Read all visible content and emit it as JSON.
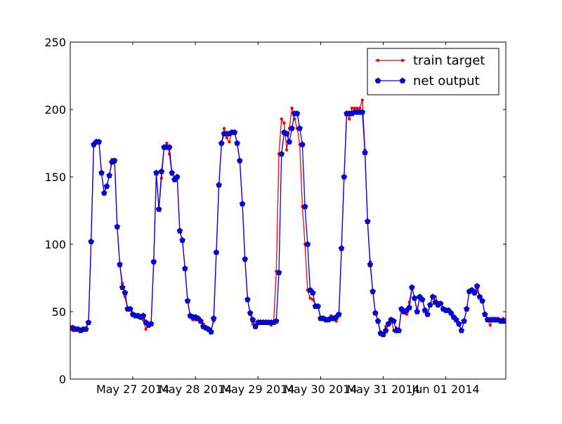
{
  "chart_data": {
    "type": "line",
    "title": "",
    "xlabel": "",
    "ylabel": "",
    "ylim": [
      0,
      250
    ],
    "yticks": [
      0,
      50,
      100,
      150,
      200,
      250
    ],
    "xlim": [
      "2014-05-26 00:00",
      "2014-06-01 23:00"
    ],
    "xtick_labels": [
      "May 27 2014",
      "May 28 2014",
      "May 29 2014",
      "May 30 2014",
      "May 31 2014",
      "Jun 01 2014"
    ],
    "grid": false,
    "legend_position": "top-right",
    "colors": {
      "train_target": "#ff0000",
      "net_output": "#0000ff"
    },
    "x": [
      "2014-05-26 00:00",
      "2014-05-26 01:00",
      "2014-05-26 02:00",
      "2014-05-26 03:00",
      "2014-05-26 04:00",
      "2014-05-26 05:00",
      "2014-05-26 06:00",
      "2014-05-26 07:00",
      "2014-05-26 08:00",
      "2014-05-26 09:00",
      "2014-05-26 10:00",
      "2014-05-26 11:00",
      "2014-05-26 12:00",
      "2014-05-26 13:00",
      "2014-05-26 14:00",
      "2014-05-26 15:00",
      "2014-05-26 16:00",
      "2014-05-26 17:00",
      "2014-05-26 18:00",
      "2014-05-26 19:00",
      "2014-05-26 20:00",
      "2014-05-26 21:00",
      "2014-05-26 22:00",
      "2014-05-26 23:00",
      "2014-05-27 00:00",
      "2014-05-27 01:00",
      "2014-05-27 02:00",
      "2014-05-27 03:00",
      "2014-05-27 04:00",
      "2014-05-27 05:00",
      "2014-05-27 06:00",
      "2014-05-27 07:00",
      "2014-05-27 08:00",
      "2014-05-27 09:00",
      "2014-05-27 10:00",
      "2014-05-27 11:00",
      "2014-05-27 12:00",
      "2014-05-27 13:00",
      "2014-05-27 14:00",
      "2014-05-27 15:00",
      "2014-05-27 16:00",
      "2014-05-27 17:00",
      "2014-05-27 18:00",
      "2014-05-27 19:00",
      "2014-05-27 20:00",
      "2014-05-27 21:00",
      "2014-05-27 22:00",
      "2014-05-27 23:00",
      "2014-05-28 00:00",
      "2014-05-28 01:00",
      "2014-05-28 02:00",
      "2014-05-28 03:00",
      "2014-05-28 04:00",
      "2014-05-28 05:00",
      "2014-05-28 06:00",
      "2014-05-28 07:00",
      "2014-05-28 08:00",
      "2014-05-28 09:00",
      "2014-05-28 10:00",
      "2014-05-28 11:00",
      "2014-05-28 12:00",
      "2014-05-28 13:00",
      "2014-05-28 14:00",
      "2014-05-28 15:00",
      "2014-05-28 16:00",
      "2014-05-28 17:00",
      "2014-05-28 18:00",
      "2014-05-28 19:00",
      "2014-05-28 20:00",
      "2014-05-28 21:00",
      "2014-05-28 22:00",
      "2014-05-28 23:00",
      "2014-05-29 00:00",
      "2014-05-29 01:00",
      "2014-05-29 02:00",
      "2014-05-29 03:00",
      "2014-05-29 04:00",
      "2014-05-29 05:00",
      "2014-05-29 06:00",
      "2014-05-29 07:00",
      "2014-05-29 08:00",
      "2014-05-29 09:00",
      "2014-05-29 10:00",
      "2014-05-29 11:00",
      "2014-05-29 12:00",
      "2014-05-29 13:00",
      "2014-05-29 14:00",
      "2014-05-29 15:00",
      "2014-05-29 16:00",
      "2014-05-29 17:00",
      "2014-05-29 18:00",
      "2014-05-29 19:00",
      "2014-05-29 20:00",
      "2014-05-29 21:00",
      "2014-05-29 22:00",
      "2014-05-29 23:00",
      "2014-05-30 00:00",
      "2014-05-30 01:00",
      "2014-05-30 02:00",
      "2014-05-30 03:00",
      "2014-05-30 04:00",
      "2014-05-30 05:00",
      "2014-05-30 06:00",
      "2014-05-30 07:00",
      "2014-05-30 08:00",
      "2014-05-30 09:00",
      "2014-05-30 10:00",
      "2014-05-30 11:00",
      "2014-05-30 12:00",
      "2014-05-30 13:00",
      "2014-05-30 14:00",
      "2014-05-30 15:00",
      "2014-05-30 16:00",
      "2014-05-30 17:00",
      "2014-05-30 18:00",
      "2014-05-30 19:00",
      "2014-05-30 20:00",
      "2014-05-30 21:00",
      "2014-05-30 22:00",
      "2014-05-30 23:00",
      "2014-05-31 00:00",
      "2014-05-31 01:00",
      "2014-05-31 02:00",
      "2014-05-31 03:00",
      "2014-05-31 04:00",
      "2014-05-31 05:00",
      "2014-05-31 06:00",
      "2014-05-31 07:00",
      "2014-05-31 08:00",
      "2014-05-31 09:00",
      "2014-05-31 10:00",
      "2014-05-31 11:00",
      "2014-05-31 12:00",
      "2014-05-31 13:00",
      "2014-05-31 14:00",
      "2014-05-31 15:00",
      "2014-05-31 16:00",
      "2014-05-31 17:00",
      "2014-05-31 18:00",
      "2014-05-31 19:00",
      "2014-05-31 20:00",
      "2014-05-31 21:00",
      "2014-05-31 22:00",
      "2014-05-31 23:00",
      "2014-06-01 00:00",
      "2014-06-01 01:00",
      "2014-06-01 02:00",
      "2014-06-01 03:00",
      "2014-06-01 04:00",
      "2014-06-01 05:00",
      "2014-06-01 06:00",
      "2014-06-01 07:00",
      "2014-06-01 08:00",
      "2014-06-01 09:00",
      "2014-06-01 10:00",
      "2014-06-01 11:00",
      "2014-06-01 12:00",
      "2014-06-01 13:00",
      "2014-06-01 14:00",
      "2014-06-01 15:00",
      "2014-06-01 16:00",
      "2014-06-01 17:00",
      "2014-06-01 18:00",
      "2014-06-01 19:00",
      "2014-06-01 20:00",
      "2014-06-01 21:00",
      "2014-06-01 22:00",
      "2014-06-01 23:00"
    ],
    "series": [
      {
        "name": "train target",
        "marker": "dot",
        "values": [
          37,
          36,
          38,
          37,
          37,
          36,
          38,
          42,
          102,
          174,
          175,
          176,
          153,
          138,
          144,
          151,
          163,
          163,
          113,
          85,
          71,
          61,
          52,
          52,
          48,
          47,
          46,
          45,
          44,
          37,
          40,
          41,
          87,
          152,
          126,
          149,
          172,
          175,
          167,
          152,
          149,
          150,
          109,
          103,
          82,
          58,
          46,
          44,
          44,
          44,
          42,
          41,
          38,
          37,
          36,
          43,
          94,
          144,
          175,
          186,
          179,
          176,
          184,
          184,
          175,
          162,
          130,
          89,
          59,
          48,
          41,
          40,
          43,
          43,
          42,
          43,
          42,
          40,
          43,
          80,
          167,
          193,
          190,
          170,
          186,
          201,
          193,
          186,
          174,
          128,
          100,
          66,
          60,
          59,
          55,
          54,
          46,
          45,
          45,
          44,
          47,
          44,
          43,
          47,
          97,
          150,
          197,
          193,
          201,
          201,
          201,
          201,
          207,
          170,
          116,
          87,
          65,
          49,
          43,
          33,
          34,
          39,
          40,
          45,
          36,
          38,
          37,
          52,
          49,
          48,
          57,
          68,
          60,
          51,
          61,
          59,
          52,
          48,
          55,
          62,
          61,
          57,
          56,
          52,
          52,
          51,
          50,
          47,
          44,
          40,
          36,
          43,
          52,
          65,
          66,
          63,
          66,
          61,
          58,
          48,
          44,
          40,
          45,
          43,
          44,
          43,
          45,
          42
        ]
      },
      {
        "name": "net output",
        "marker": "pentagon",
        "values": [
          38,
          38,
          37,
          37,
          36,
          37,
          37,
          42,
          102,
          174,
          176,
          176,
          153,
          138,
          143,
          151,
          161,
          162,
          113,
          85,
          68,
          64,
          52,
          52,
          48,
          47,
          47,
          46,
          47,
          42,
          40,
          41,
          87,
          153,
          126,
          154,
          172,
          172,
          172,
          153,
          148,
          150,
          110,
          103,
          82,
          58,
          47,
          46,
          46,
          45,
          43,
          39,
          38,
          37,
          35,
          45,
          94,
          144,
          175,
          182,
          182,
          182,
          183,
          183,
          175,
          162,
          130,
          89,
          59,
          49,
          44,
          39,
          42,
          42,
          42,
          42,
          42,
          42,
          42,
          43,
          79,
          167,
          183,
          182,
          176,
          186,
          197,
          197,
          186,
          174,
          128,
          100,
          66,
          64,
          54,
          54,
          45,
          45,
          44,
          44,
          45,
          45,
          46,
          48,
          97,
          150,
          197,
          197,
          197,
          198,
          198,
          198,
          198,
          168,
          117,
          85,
          65,
          49,
          43,
          34,
          33,
          36,
          41,
          44,
          43,
          36,
          36,
          52,
          50,
          51,
          53,
          68,
          60,
          50,
          61,
          59,
          51,
          48,
          55,
          61,
          57,
          55,
          56,
          52,
          51,
          51,
          49,
          46,
          44,
          41,
          36,
          43,
          52,
          65,
          66,
          64,
          69,
          61,
          58,
          48,
          44,
          44,
          44,
          44,
          44,
          43,
          43,
          43
        ]
      }
    ]
  }
}
